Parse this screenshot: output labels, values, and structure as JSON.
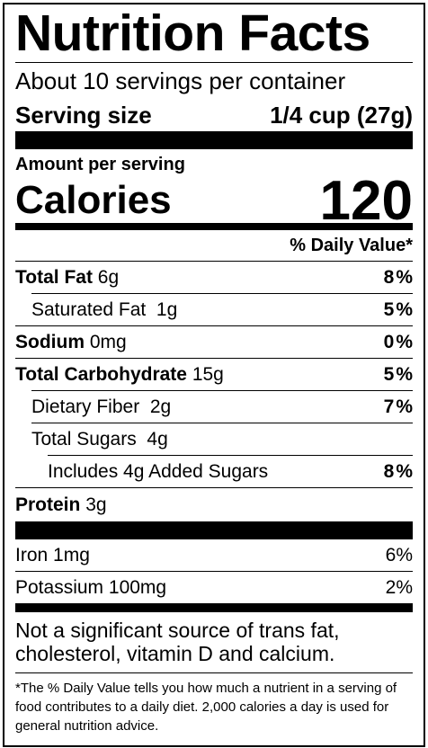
{
  "title": "Nutrition Facts",
  "servings": "About 10 servings per container",
  "serving_size": {
    "label": "Serving size",
    "value": "1/4 cup (27g)"
  },
  "amount_per_serving": "Amount per serving",
  "calories": {
    "label": "Calories",
    "value": "120"
  },
  "daily_value_header": "% Daily Value*",
  "nutrients": [
    {
      "name": "Total Fat",
      "amount": "6g",
      "dv": "8%",
      "bold": true,
      "indent": 0
    },
    {
      "name": "Saturated Fat",
      "amount": "1g",
      "dv": "5%",
      "bold": false,
      "indent": 1
    },
    {
      "name": "Sodium",
      "amount": "0mg",
      "dv": "0%",
      "bold": true,
      "indent": 0
    },
    {
      "name": "Total Carbohydrate",
      "amount": "15g",
      "dv": "5%",
      "bold": true,
      "indent": 0
    },
    {
      "name": "Dietary Fiber",
      "amount": "2g",
      "dv": "7%",
      "bold": false,
      "indent": 1
    },
    {
      "name": "Total Sugars",
      "amount": "4g",
      "bold": false,
      "indent": 1
    },
    {
      "name": "Includes 4g Added Sugars",
      "dv": "8%",
      "bold": false,
      "indent": 2
    },
    {
      "name": "Protein",
      "amount": "3g",
      "bold": true,
      "indent": 0
    }
  ],
  "minerals": [
    {
      "name": "Iron",
      "amount": "1mg",
      "dv": "6%"
    },
    {
      "name": "Potassium",
      "amount": "100mg",
      "dv": "2%"
    }
  ],
  "note": "Not a significant source of trans fat, cholesterol, vitamin D and calcium.",
  "footnote": "*The % Daily Value tells you how much a nutrient in a serving of food contributes to a daily diet. 2,000 calories a day is used for general nutrition advice."
}
